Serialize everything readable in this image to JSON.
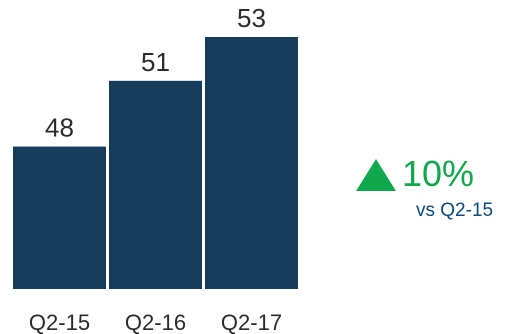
{
  "chart_data": {
    "type": "bar",
    "categories": [
      "Q2-15",
      "Q2-16",
      "Q2-17"
    ],
    "values": [
      48,
      51,
      53
    ],
    "data_labels": [
      "48",
      "51",
      "53"
    ],
    "ylim": [
      0,
      53
    ],
    "grid": false,
    "bar_color": "#173d5c",
    "title": "",
    "xlabel": "",
    "ylabel": ""
  },
  "change": {
    "direction": "up",
    "icon": "up-triangle-icon",
    "value": "10%",
    "reference": "vs Q2-15",
    "color": "#11a84d",
    "reference_color": "#0b4a7a"
  }
}
